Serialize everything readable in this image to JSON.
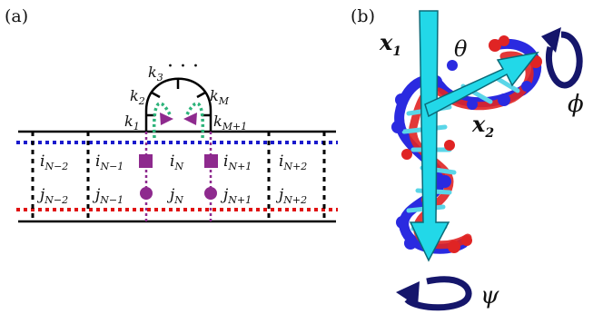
{
  "panel_a": {
    "label": "(a)",
    "dots": "· · ·",
    "k_labels": [
      {
        "main": "k",
        "sub": "1"
      },
      {
        "main": "k",
        "sub": "2"
      },
      {
        "main": "k",
        "sub": "3"
      },
      {
        "main": "k",
        "sub": "M"
      },
      {
        "main": "k",
        "sub": "M+1"
      }
    ],
    "i_labels": [
      {
        "main": "i",
        "sub": "N−2"
      },
      {
        "main": "i",
        "sub": "N−1"
      },
      {
        "main": "i",
        "sub": "N"
      },
      {
        "main": "i",
        "sub": "N+1"
      },
      {
        "main": "i",
        "sub": "N+2"
      }
    ],
    "j_labels": [
      {
        "main": "j",
        "sub": "N−2"
      },
      {
        "main": "j",
        "sub": "N−1"
      },
      {
        "main": "j",
        "sub": "N"
      },
      {
        "main": "j",
        "sub": "N+1"
      },
      {
        "main": "j",
        "sub": "N+2"
      }
    ],
    "colors": {
      "strand": "#000000",
      "blue_dotted": "#1a1acc",
      "red_dotted": "#e01010",
      "green_dotted": "#2db37a",
      "purple": "#8e2a8e"
    }
  },
  "panel_b": {
    "label": "(b)",
    "x1": {
      "main": "x",
      "sub": "1"
    },
    "x2": {
      "main": "x",
      "sub": "2"
    },
    "theta": "θ",
    "phi": "ϕ",
    "psi": "ψ",
    "colors": {
      "axis": "#22d8e8",
      "axis_edge": "#0a6a78",
      "rotation_arrow": "#15166b",
      "helix_blue": "#2a2ae0",
      "helix_red": "#e02424",
      "helix_cyan": "#5ad6e8"
    }
  }
}
